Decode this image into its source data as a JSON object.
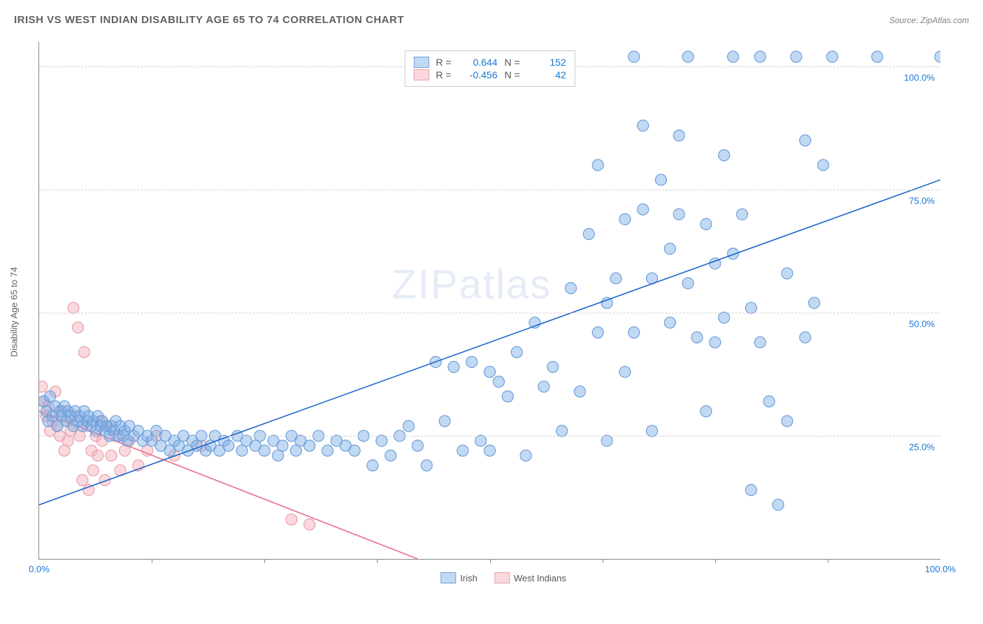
{
  "title": "IRISH VS WEST INDIAN DISABILITY AGE 65 TO 74 CORRELATION CHART",
  "source": "Source: ZipAtlas.com",
  "watermark": "ZIPatlas",
  "y_axis_label": "Disability Age 65 to 74",
  "chart": {
    "type": "scatter",
    "xlim": [
      0,
      100
    ],
    "ylim": [
      0,
      105
    ],
    "x_ticks": [
      0,
      100
    ],
    "x_tick_labels": [
      "0.0%",
      "100.0%"
    ],
    "x_minor_ticks": [
      12.5,
      25,
      37.5,
      50,
      62.5,
      75,
      87.5
    ],
    "y_ticks": [
      25,
      50,
      75,
      100
    ],
    "y_tick_labels": [
      "25.0%",
      "50.0%",
      "75.0%",
      "100.0%"
    ],
    "background_color": "#ffffff",
    "grid_color": "#d0d0d0",
    "axis_color": "#888888",
    "marker_radius": 8,
    "marker_stroke_width": 1.2,
    "trend_line_width": 1.6
  },
  "series": {
    "irish": {
      "label": "Irish",
      "fill_color": "rgba(120,170,230,0.45)",
      "stroke_color": "#6fa0d8",
      "line_color": "#1e66c9",
      "r_value": "0.644",
      "n_value": "152",
      "trend": {
        "x1": 0,
        "y1": 11,
        "x2": 100,
        "y2": 77
      },
      "points": [
        [
          0.5,
          32
        ],
        [
          0.8,
          30
        ],
        [
          1,
          28
        ],
        [
          1.2,
          33
        ],
        [
          1.5,
          29
        ],
        [
          1.8,
          31
        ],
        [
          2,
          27
        ],
        [
          2.3,
          30
        ],
        [
          2.5,
          29
        ],
        [
          2.8,
          31
        ],
        [
          3,
          28
        ],
        [
          3.2,
          30
        ],
        [
          3.5,
          29
        ],
        [
          3.8,
          27
        ],
        [
          4,
          30
        ],
        [
          4.3,
          28
        ],
        [
          4.5,
          29
        ],
        [
          4.8,
          27
        ],
        [
          5,
          30
        ],
        [
          5.3,
          28
        ],
        [
          5.5,
          29
        ],
        [
          5.8,
          27
        ],
        [
          6,
          28
        ],
        [
          6.3,
          26
        ],
        [
          6.5,
          29
        ],
        [
          6.8,
          27
        ],
        [
          7,
          28
        ],
        [
          7.3,
          26
        ],
        [
          7.5,
          27
        ],
        [
          7.8,
          25
        ],
        [
          8,
          27
        ],
        [
          8.3,
          26
        ],
        [
          8.5,
          28
        ],
        [
          8.8,
          25
        ],
        [
          9,
          27
        ],
        [
          9.3,
          25
        ],
        [
          9.5,
          26
        ],
        [
          9.8,
          24
        ],
        [
          10,
          27
        ],
        [
          10.5,
          25
        ],
        [
          11,
          26
        ],
        [
          11.5,
          24
        ],
        [
          12,
          25
        ],
        [
          12.5,
          24
        ],
        [
          13,
          26
        ],
        [
          13.5,
          23
        ],
        [
          14,
          25
        ],
        [
          14.5,
          22
        ],
        [
          15,
          24
        ],
        [
          15.5,
          23
        ],
        [
          16,
          25
        ],
        [
          16.5,
          22
        ],
        [
          17,
          24
        ],
        [
          17.5,
          23
        ],
        [
          18,
          25
        ],
        [
          18.5,
          22
        ],
        [
          19,
          23
        ],
        [
          19.5,
          25
        ],
        [
          20,
          22
        ],
        [
          20.5,
          24
        ],
        [
          21,
          23
        ],
        [
          22,
          25
        ],
        [
          22.5,
          22
        ],
        [
          23,
          24
        ],
        [
          24,
          23
        ],
        [
          24.5,
          25
        ],
        [
          25,
          22
        ],
        [
          26,
          24
        ],
        [
          26.5,
          21
        ],
        [
          27,
          23
        ],
        [
          28,
          25
        ],
        [
          28.5,
          22
        ],
        [
          29,
          24
        ],
        [
          30,
          23
        ],
        [
          31,
          25
        ],
        [
          32,
          22
        ],
        [
          33,
          24
        ],
        [
          34,
          23
        ],
        [
          35,
          22
        ],
        [
          36,
          25
        ],
        [
          37,
          19
        ],
        [
          38,
          24
        ],
        [
          39,
          21
        ],
        [
          40,
          25
        ],
        [
          41,
          27
        ],
        [
          42,
          23
        ],
        [
          43,
          19
        ],
        [
          44,
          40
        ],
        [
          45,
          28
        ],
        [
          46,
          39
        ],
        [
          47,
          22
        ],
        [
          48,
          40
        ],
        [
          49,
          24
        ],
        [
          50,
          38
        ],
        [
          50,
          22
        ],
        [
          51,
          36
        ],
        [
          52,
          33
        ],
        [
          53,
          42
        ],
        [
          54,
          21
        ],
        [
          55,
          48
        ],
        [
          56,
          35
        ],
        [
          57,
          39
        ],
        [
          58,
          26
        ],
        [
          59,
          55
        ],
        [
          60,
          34
        ],
        [
          61,
          66
        ],
        [
          62,
          80
        ],
        [
          62,
          46
        ],
        [
          63,
          24
        ],
        [
          63,
          52
        ],
        [
          64,
          57
        ],
        [
          65,
          38
        ],
        [
          65,
          69
        ],
        [
          66,
          46
        ],
        [
          66,
          102
        ],
        [
          67,
          71
        ],
        [
          67,
          88
        ],
        [
          68,
          57
        ],
        [
          68,
          26
        ],
        [
          69,
          77
        ],
        [
          70,
          48
        ],
        [
          70,
          63
        ],
        [
          71,
          70
        ],
        [
          71,
          86
        ],
        [
          72,
          56
        ],
        [
          72,
          102
        ],
        [
          73,
          45
        ],
        [
          74,
          30
        ],
        [
          74,
          68
        ],
        [
          75,
          44
        ],
        [
          75,
          60
        ],
        [
          76,
          49
        ],
        [
          76,
          82
        ],
        [
          77,
          62
        ],
        [
          77,
          102
        ],
        [
          78,
          70
        ],
        [
          79,
          51
        ],
        [
          79,
          14
        ],
        [
          80,
          44
        ],
        [
          80,
          102
        ],
        [
          81,
          32
        ],
        [
          82,
          11
        ],
        [
          83,
          58
        ],
        [
          83,
          28
        ],
        [
          84,
          102
        ],
        [
          85,
          45
        ],
        [
          85,
          85
        ],
        [
          86,
          52
        ],
        [
          87,
          80
        ],
        [
          88,
          102
        ],
        [
          93,
          102
        ],
        [
          100,
          102
        ]
      ]
    },
    "west_indians": {
      "label": "West Indians",
      "fill_color": "rgba(243,170,180,0.45)",
      "stroke_color": "#e8a0b0",
      "line_color": "#e86f8a",
      "r_value": "-0.456",
      "n_value": "42",
      "trend": {
        "x1": 0,
        "y1": 30,
        "x2": 42,
        "y2": 0
      },
      "points": [
        [
          0.3,
          35
        ],
        [
          0.5,
          32
        ],
        [
          0.8,
          29
        ],
        [
          1,
          31
        ],
        [
          1.2,
          26
        ],
        [
          1.5,
          28
        ],
        [
          1.8,
          34
        ],
        [
          2,
          27
        ],
        [
          2.3,
          25
        ],
        [
          2.5,
          30
        ],
        [
          2.8,
          22
        ],
        [
          3,
          28
        ],
        [
          3.2,
          24
        ],
        [
          3.5,
          26
        ],
        [
          3.8,
          51
        ],
        [
          4,
          29
        ],
        [
          4.3,
          47
        ],
        [
          4.5,
          25
        ],
        [
          4.8,
          16
        ],
        [
          5,
          42
        ],
        [
          5.3,
          27
        ],
        [
          5.5,
          14
        ],
        [
          5.8,
          22
        ],
        [
          6,
          18
        ],
        [
          6.3,
          25
        ],
        [
          6.5,
          21
        ],
        [
          6.8,
          28
        ],
        [
          7,
          24
        ],
        [
          7.3,
          16
        ],
        [
          7.5,
          27
        ],
        [
          8,
          21
        ],
        [
          8.5,
          25
        ],
        [
          9,
          18
        ],
        [
          9.5,
          22
        ],
        [
          10,
          24
        ],
        [
          11,
          19
        ],
        [
          12,
          22
        ],
        [
          13,
          25
        ],
        [
          15,
          21
        ],
        [
          18,
          23
        ],
        [
          28,
          8
        ],
        [
          30,
          7
        ]
      ]
    }
  },
  "legend_top": {
    "r_label": "R =",
    "n_label": "N ="
  },
  "legend_bottom": {
    "items": [
      {
        "key": "irish"
      },
      {
        "key": "west_indians"
      }
    ]
  }
}
